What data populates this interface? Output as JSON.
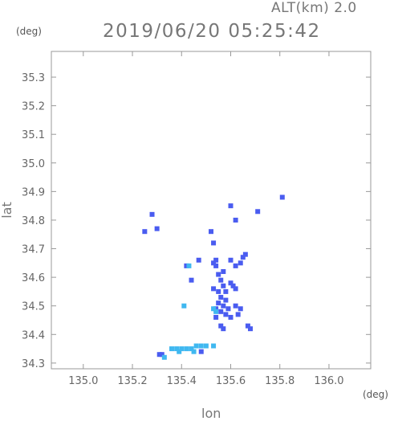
{
  "header": {
    "altitude_label": "ALT(km) 2.0",
    "timestamp": "2019/06/20 05:25:42"
  },
  "chart_data": {
    "type": "scatter",
    "title": "2019/06/20 05:25:42",
    "xlabel": "lon",
    "ylabel": "lat",
    "x_unit": "(deg)",
    "y_unit": "(deg)",
    "xlim": [
      134.87,
      136.17
    ],
    "ylim": [
      34.28,
      35.39
    ],
    "x_ticks": [
      "135.0",
      "135.2",
      "135.4",
      "135.6",
      "135.8",
      "136.0"
    ],
    "y_ticks": [
      "34.3",
      "34.4",
      "34.5",
      "34.6",
      "34.7",
      "34.8",
      "34.9",
      "35.0",
      "35.1",
      "35.2",
      "35.3"
    ],
    "grid": false,
    "colors": {
      "blue": "#4a5cf0",
      "cyan": "#40b8f0",
      "axis": "#999999"
    },
    "series": [
      {
        "color": "blue",
        "points": [
          [
            135.28,
            34.82
          ],
          [
            135.25,
            34.76
          ],
          [
            135.3,
            34.77
          ],
          [
            135.6,
            34.85
          ],
          [
            135.62,
            34.8
          ],
          [
            135.71,
            34.83
          ],
          [
            135.81,
            34.88
          ],
          [
            135.52,
            34.76
          ],
          [
            135.53,
            34.72
          ],
          [
            135.66,
            34.68
          ],
          [
            135.65,
            34.67
          ],
          [
            135.54,
            34.66
          ],
          [
            135.53,
            34.65
          ],
          [
            135.6,
            34.66
          ],
          [
            135.64,
            34.65
          ],
          [
            135.62,
            34.64
          ],
          [
            135.47,
            34.66
          ],
          [
            135.42,
            34.64
          ],
          [
            135.44,
            34.59
          ],
          [
            135.54,
            34.64
          ],
          [
            135.57,
            34.62
          ],
          [
            135.55,
            34.61
          ],
          [
            135.56,
            34.59
          ],
          [
            135.57,
            34.57
          ],
          [
            135.6,
            34.58
          ],
          [
            135.53,
            34.56
          ],
          [
            135.55,
            34.55
          ],
          [
            135.58,
            34.55
          ],
          [
            135.61,
            34.57
          ],
          [
            135.62,
            34.56
          ],
          [
            135.56,
            34.53
          ],
          [
            135.58,
            34.52
          ],
          [
            135.55,
            34.51
          ],
          [
            135.57,
            34.5
          ],
          [
            135.59,
            34.49
          ],
          [
            135.54,
            34.49
          ],
          [
            135.56,
            34.48
          ],
          [
            135.58,
            34.47
          ],
          [
            135.62,
            34.5
          ],
          [
            135.64,
            34.49
          ],
          [
            135.63,
            34.47
          ],
          [
            135.6,
            34.46
          ],
          [
            135.54,
            34.46
          ],
          [
            135.56,
            34.43
          ],
          [
            135.57,
            34.42
          ],
          [
            135.67,
            34.43
          ],
          [
            135.68,
            34.42
          ],
          [
            135.31,
            34.33
          ],
          [
            135.32,
            34.33
          ],
          [
            135.48,
            34.34
          ]
        ]
      },
      {
        "color": "cyan",
        "points": [
          [
            135.36,
            34.35
          ],
          [
            135.38,
            34.35
          ],
          [
            135.4,
            34.35
          ],
          [
            135.42,
            34.35
          ],
          [
            135.44,
            34.35
          ],
          [
            135.46,
            34.36
          ],
          [
            135.48,
            34.36
          ],
          [
            135.5,
            34.36
          ],
          [
            135.53,
            34.36
          ],
          [
            135.41,
            34.5
          ],
          [
            135.53,
            34.49
          ],
          [
            135.54,
            34.48
          ],
          [
            135.43,
            34.64
          ],
          [
            135.33,
            34.32
          ],
          [
            135.39,
            34.34
          ],
          [
            135.45,
            34.34
          ]
        ]
      }
    ]
  }
}
